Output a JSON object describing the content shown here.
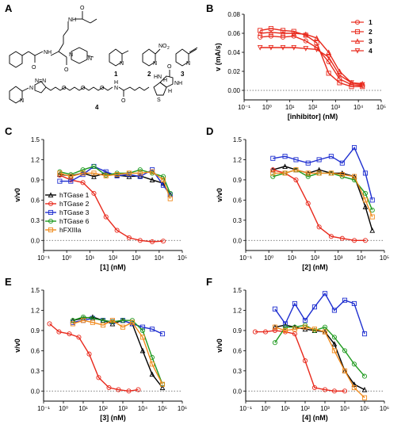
{
  "panels": [
    {
      "id": "A",
      "label": "A"
    },
    {
      "id": "B",
      "label": "B"
    },
    {
      "id": "C",
      "label": "C"
    },
    {
      "id": "D",
      "label": "D"
    },
    {
      "id": "E",
      "label": "E"
    },
    {
      "id": "F",
      "label": "F"
    }
  ],
  "structures": {
    "compounds": [
      "1",
      "2",
      "3",
      "4"
    ],
    "atoms": {
      "o_amide1": "O",
      "nh_1": "NH",
      "o_2": "O",
      "n_pip1": "N",
      "n_pip2": "N",
      "n_pyr1": "N",
      "n_pyr2": "N",
      "no2": "NO",
      "no2_sub": "2",
      "n_pyr3": "N",
      "n_tri": "N",
      "n_tri2": "N=N",
      "o_a": "O",
      "o_b": "O",
      "o_c": "O",
      "nh_b": "H",
      "nh_b2": "N",
      "o_b2": "O",
      "hn_ring": "HN",
      "nh_ring": "NH",
      "s_ring": "S",
      "h1": "H",
      "h2": "H",
      "o_ring": "O"
    }
  },
  "chart_data": [
    {
      "panel": "B",
      "type": "line",
      "xlabel": "[inhibitor] (nM)",
      "ylabel": "v (mA/s)",
      "xscale": "log",
      "xlim": [
        0.1,
        100000
      ],
      "ylim": [
        -0.01,
        0.08
      ],
      "xticks": [
        "10⁻¹",
        "10⁰",
        "10¹",
        "10²",
        "10³",
        "10⁴",
        "10⁵"
      ],
      "yticks": [
        "0.00",
        "0.02",
        "0.04",
        "0.06",
        "0.08"
      ],
      "legend": [
        "1",
        "2",
        "3",
        "4"
      ],
      "color": "#e8291c",
      "series": [
        {
          "name": "1",
          "marker": "circle",
          "x": [
            0.5,
            1.5,
            5,
            15,
            50,
            150,
            500,
            1500,
            5000,
            15000
          ],
          "y": [
            0.056,
            0.057,
            0.056,
            0.057,
            0.052,
            0.045,
            0.03,
            0.012,
            0.006,
            0.005
          ]
        },
        {
          "name": "2",
          "marker": "square",
          "x": [
            0.5,
            1.5,
            5,
            15,
            50,
            150,
            500,
            1500,
            5000,
            15000
          ],
          "y": [
            0.063,
            0.065,
            0.063,
            0.062,
            0.058,
            0.05,
            0.018,
            0.008,
            0.004,
            0.004
          ]
        },
        {
          "name": "3",
          "marker": "triangle-up",
          "x": [
            0.5,
            1.5,
            5,
            15,
            50,
            150,
            500,
            1500,
            5000,
            15000
          ],
          "y": [
            0.06,
            0.061,
            0.06,
            0.06,
            0.059,
            0.055,
            0.04,
            0.02,
            0.008,
            0.007
          ]
        },
        {
          "name": "4",
          "marker": "triangle-down",
          "x": [
            0.5,
            1.5,
            5,
            15,
            50,
            150,
            500,
            1500,
            5000,
            15000
          ],
          "y": [
            0.045,
            0.045,
            0.045,
            0.045,
            0.044,
            0.043,
            0.035,
            0.016,
            0.008,
            0.006
          ]
        }
      ]
    },
    {
      "panel": "C",
      "type": "line",
      "xlabel": "[1] (nM)",
      "ylabel": "v/v0",
      "xscale": "log",
      "xlim": [
        0.1,
        100000
      ],
      "ylim": [
        -0.15,
        1.5
      ],
      "xticks": [
        "10⁻¹",
        "10⁰",
        "10¹",
        "10²",
        "10³",
        "10⁴",
        "10⁵"
      ],
      "yticks": [
        "0.0",
        "0.3",
        "0.6",
        "0.9",
        "1.2",
        "1.5"
      ],
      "legend": [
        "hTGase 1",
        "hTGase 2",
        "hTGase 3",
        "hTGase 6",
        "hFXIIIa"
      ],
      "series": [
        {
          "name": "hTGase 1",
          "color": "#000000",
          "x": [
            0.5,
            1.5,
            5,
            15,
            50,
            150,
            500,
            1500,
            5000,
            15000,
            30000
          ],
          "y": [
            0.98,
            0.96,
            1.0,
            0.95,
            1.0,
            0.97,
            0.95,
            0.96,
            0.9,
            0.85,
            0.68
          ]
        },
        {
          "name": "hTGase 2",
          "color": "#e8291c",
          "x": [
            0.5,
            1.5,
            5,
            15,
            50,
            150,
            500,
            1500,
            5000,
            15000
          ],
          "y": [
            0.97,
            0.9,
            0.86,
            0.7,
            0.35,
            0.15,
            0.04,
            0.0,
            -0.02,
            -0.01
          ]
        },
        {
          "name": "hTGase 3",
          "color": "#1f2fd0",
          "x": [
            0.5,
            1.5,
            5,
            15,
            50,
            150,
            500,
            1500,
            5000,
            15000,
            30000
          ],
          "y": [
            0.88,
            0.88,
            0.98,
            1.1,
            1.02,
            0.96,
            0.98,
            0.95,
            1.05,
            0.82,
            0.68
          ]
        },
        {
          "name": "hTGase 6",
          "color": "#1f9a1f",
          "x": [
            0.5,
            1.5,
            5,
            15,
            50,
            150,
            500,
            1500,
            5000,
            15000,
            30000
          ],
          "y": [
            1.02,
            0.98,
            1.05,
            1.1,
            0.97,
            1.0,
            1.0,
            1.05,
            1.0,
            0.95,
            0.7
          ]
        },
        {
          "name": "hFXIIIa",
          "color": "#f08a1c",
          "x": [
            0.5,
            1.5,
            5,
            15,
            50,
            150,
            500,
            1500,
            5000,
            15000,
            30000
          ],
          "y": [
            1.0,
            0.95,
            1.0,
            1.0,
            0.96,
            0.98,
            1.0,
            1.0,
            1.02,
            0.9,
            0.62
          ]
        }
      ]
    },
    {
      "panel": "D",
      "type": "line",
      "xlabel": "[2] (nM)",
      "ylabel": "v/v0",
      "xscale": "log",
      "xlim": [
        0.1,
        100000
      ],
      "ylim": [
        -0.15,
        1.5
      ],
      "xticks": [
        "10⁻¹",
        "10⁰",
        "10¹",
        "10²",
        "10³",
        "10⁴",
        "10⁵"
      ],
      "yticks": [
        "0.0",
        "0.3",
        "0.6",
        "0.9",
        "1.2",
        "1.5"
      ],
      "series": [
        {
          "name": "hTGase 1",
          "color": "#000000",
          "x": [
            1.5,
            5,
            15,
            50,
            150,
            500,
            1500,
            5000,
            15000,
            30000
          ],
          "y": [
            1.05,
            1.1,
            1.05,
            1.0,
            1.05,
            1.0,
            1.0,
            0.95,
            0.5,
            0.15
          ]
        },
        {
          "name": "hTGase 2",
          "color": "#e8291c",
          "x": [
            1.5,
            5,
            15,
            50,
            150,
            500,
            1500,
            5000,
            15000
          ],
          "y": [
            1.05,
            1.0,
            0.9,
            0.55,
            0.2,
            0.06,
            0.03,
            0.0,
            0.0
          ]
        },
        {
          "name": "hTGase 3",
          "color": "#1f2fd0",
          "x": [
            1.5,
            5,
            15,
            50,
            150,
            500,
            1500,
            5000,
            15000,
            30000
          ],
          "y": [
            1.22,
            1.25,
            1.2,
            1.15,
            1.2,
            1.25,
            1.15,
            1.38,
            1.0,
            0.6
          ]
        },
        {
          "name": "hTGase 6",
          "color": "#1f9a1f",
          "x": [
            1.5,
            5,
            15,
            50,
            150,
            500,
            1500,
            5000,
            15000,
            30000
          ],
          "y": [
            0.95,
            1.0,
            1.05,
            0.95,
            1.0,
            1.0,
            0.95,
            0.9,
            0.7,
            0.45
          ]
        },
        {
          "name": "hFXIIIa",
          "color": "#f08a1c",
          "x": [
            1.5,
            5,
            15,
            50,
            150,
            500,
            1500,
            5000,
            15000,
            30000
          ],
          "y": [
            1.0,
            1.0,
            1.05,
            1.0,
            1.0,
            1.0,
            0.98,
            0.95,
            0.6,
            0.35
          ]
        }
      ]
    },
    {
      "panel": "E",
      "type": "line",
      "xlabel": "[3] (nM)",
      "ylabel": "v/v0",
      "xscale": "log",
      "xlim": [
        0.1,
        1000000
      ],
      "ylim": [
        -0.15,
        1.5
      ],
      "xticks": [
        "10⁻¹",
        "10⁰",
        "10¹",
        "10²",
        "10³",
        "10⁴",
        "10⁵",
        "10⁶"
      ],
      "yticks": [
        "0.0",
        "0.3",
        "0.6",
        "0.9",
        "1.2",
        "1.5"
      ],
      "series": [
        {
          "name": "hTGase 1",
          "color": "#000000",
          "x": [
            3,
            10,
            30,
            100,
            300,
            1000,
            3000,
            10000,
            30000,
            100000
          ],
          "y": [
            1.05,
            1.08,
            1.1,
            1.05,
            1.0,
            1.05,
            1.0,
            0.6,
            0.25,
            0.05
          ]
        },
        {
          "name": "hTGase 2",
          "color": "#e8291c",
          "x": [
            0.2,
            0.6,
            2,
            6,
            20,
            60,
            200,
            600,
            2000,
            6000
          ],
          "y": [
            1.0,
            0.88,
            0.85,
            0.8,
            0.55,
            0.2,
            0.05,
            0.02,
            0.0,
            0.02
          ]
        },
        {
          "name": "hTGase 3",
          "color": "#1f2fd0",
          "x": [
            3,
            10,
            30,
            100,
            300,
            1000,
            3000,
            10000,
            30000,
            100000
          ],
          "y": [
            1.02,
            1.05,
            1.08,
            1.05,
            1.03,
            1.05,
            1.0,
            0.95,
            0.92,
            0.85
          ]
        },
        {
          "name": "hTGase 6",
          "color": "#1f9a1f",
          "x": [
            3,
            10,
            30,
            100,
            300,
            1000,
            3000,
            10000,
            30000,
            100000
          ],
          "y": [
            1.05,
            1.1,
            1.08,
            1.05,
            1.03,
            1.05,
            1.05,
            0.9,
            0.5,
            0.1
          ]
        },
        {
          "name": "hFXIIIa",
          "color": "#f08a1c",
          "x": [
            3,
            10,
            30,
            100,
            300,
            1000,
            3000,
            10000,
            30000,
            100000
          ],
          "y": [
            1.0,
            1.05,
            1.02,
            0.98,
            1.05,
            0.95,
            1.02,
            0.8,
            0.4,
            0.1
          ]
        }
      ]
    },
    {
      "panel": "F",
      "type": "line",
      "xlabel": "[4] (nM)",
      "ylabel": "v/v0",
      "xscale": "log",
      "xlim": [
        0.1,
        1000000
      ],
      "ylim": [
        -0.15,
        1.5
      ],
      "xticks": [
        "10⁻¹",
        "10⁰",
        "10¹",
        "10²",
        "10³",
        "10⁴",
        "10⁵",
        "10⁶"
      ],
      "yticks": [
        "0.0",
        "0.3",
        "0.6",
        "0.9",
        "1.2",
        "1.5"
      ],
      "series": [
        {
          "name": "hTGase 1",
          "color": "#000000",
          "x": [
            3,
            10,
            30,
            100,
            300,
            1000,
            3000,
            10000,
            30000,
            100000
          ],
          "y": [
            0.95,
            0.98,
            0.95,
            0.92,
            0.9,
            0.88,
            0.7,
            0.3,
            0.1,
            0.02
          ]
        },
        {
          "name": "hTGase 2",
          "color": "#e8291c",
          "x": [
            0.3,
            1,
            3,
            10,
            30,
            100,
            300,
            1000,
            3000,
            10000
          ],
          "y": [
            0.88,
            0.88,
            0.9,
            0.88,
            0.85,
            0.45,
            0.05,
            0.02,
            0.0,
            0.0
          ]
        },
        {
          "name": "hTGase 3",
          "color": "#1f2fd0",
          "x": [
            3,
            10,
            30,
            100,
            300,
            1000,
            3000,
            10000,
            30000,
            100000
          ],
          "y": [
            1.22,
            1.0,
            1.3,
            1.05,
            1.25,
            1.45,
            1.2,
            1.35,
            1.3,
            0.85
          ]
        },
        {
          "name": "hTGase 6",
          "color": "#1f9a1f",
          "x": [
            3,
            10,
            30,
            100,
            300,
            1000,
            3000,
            10000,
            30000,
            100000
          ],
          "y": [
            0.72,
            0.95,
            0.95,
            0.98,
            0.9,
            0.95,
            0.8,
            0.6,
            0.4,
            0.22
          ]
        },
        {
          "name": "hFXIIIa",
          "color": "#f08a1c",
          "x": [
            3,
            10,
            30,
            100,
            300,
            1000,
            3000,
            10000,
            30000,
            100000
          ],
          "y": [
            0.95,
            0.9,
            0.92,
            0.95,
            0.92,
            0.88,
            0.6,
            0.3,
            0.05,
            -0.1
          ]
        }
      ]
    }
  ]
}
